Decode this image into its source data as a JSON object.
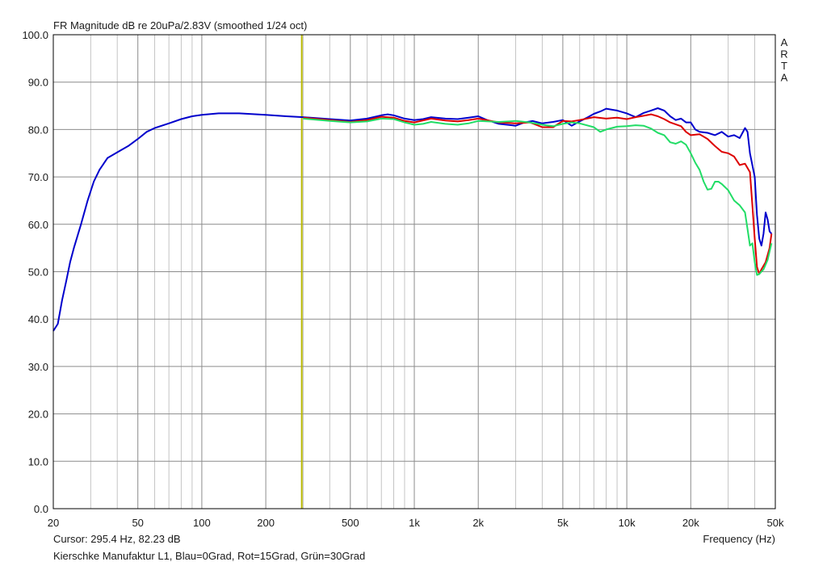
{
  "chart_data": {
    "type": "line",
    "title": "FR Magnitude dB re 20uPa/2.83V (smoothed 1/24 oct)",
    "watermark": [
      "A",
      "R",
      "T",
      "A"
    ],
    "xlabel": "Frequency (Hz)",
    "x_scale": "log",
    "xlim": [
      20,
      50000
    ],
    "ylim": [
      0,
      100
    ],
    "grid": true,
    "x_tick_labels": [
      {
        "value": 20,
        "label": "20"
      },
      {
        "value": 50,
        "label": "50"
      },
      {
        "value": 100,
        "label": "100"
      },
      {
        "value": 200,
        "label": "200"
      },
      {
        "value": 500,
        "label": "500"
      },
      {
        "value": 1000,
        "label": "1k"
      },
      {
        "value": 2000,
        "label": "2k"
      },
      {
        "value": 5000,
        "label": "5k"
      },
      {
        "value": 10000,
        "label": "10k"
      },
      {
        "value": 20000,
        "label": "20k"
      },
      {
        "value": 50000,
        "label": "50k"
      }
    ],
    "y_tick_labels": [
      "0.0",
      "10.0",
      "20.0",
      "30.0",
      "40.0",
      "50.0",
      "60.0",
      "70.0",
      "80.0",
      "90.0",
      "100.0"
    ],
    "y_ticks": [
      0,
      10,
      20,
      30,
      40,
      50,
      60,
      70,
      80,
      90,
      100
    ],
    "cursor": {
      "frequency": 295.4,
      "color": "#b8b800"
    },
    "cursor_text": "Cursor: 295.4 Hz, 82.23 dB",
    "description": "Kierschke Manufaktur L1, Blau=0Grad, Rot=15Grad, Grün=30Grad",
    "series": [
      {
        "color": "#0000cc",
        "points": [
          [
            20,
            37.5
          ],
          [
            21,
            39
          ],
          [
            22,
            44
          ],
          [
            23,
            48
          ],
          [
            24,
            52
          ],
          [
            25,
            55
          ],
          [
            27,
            60
          ],
          [
            29,
            65
          ],
          [
            31,
            69
          ],
          [
            33,
            71.5
          ],
          [
            36,
            74
          ],
          [
            40,
            75.2
          ],
          [
            45,
            76.5
          ],
          [
            50,
            78
          ],
          [
            55,
            79.5
          ],
          [
            60,
            80.3
          ],
          [
            70,
            81.3
          ],
          [
            80,
            82.2
          ],
          [
            90,
            82.8
          ],
          [
            100,
            83.1
          ],
          [
            120,
            83.4
          ],
          [
            150,
            83.4
          ],
          [
            200,
            83.1
          ],
          [
            250,
            82.8
          ],
          [
            300,
            82.6
          ],
          [
            400,
            82.2
          ],
          [
            500,
            81.9
          ],
          [
            600,
            82.3
          ],
          [
            700,
            83
          ],
          [
            750,
            83.2
          ],
          [
            800,
            83
          ],
          [
            900,
            82.3
          ],
          [
            1000,
            82
          ],
          [
            1100,
            82.2
          ],
          [
            1200,
            82.6
          ],
          [
            1400,
            82.3
          ],
          [
            1600,
            82.2
          ],
          [
            1800,
            82.5
          ],
          [
            2000,
            82.8
          ],
          [
            2200,
            82
          ],
          [
            2500,
            81.2
          ],
          [
            3000,
            80.8
          ],
          [
            3300,
            81.5
          ],
          [
            3600,
            81.8
          ],
          [
            4000,
            81.3
          ],
          [
            4500,
            81.6
          ],
          [
            5000,
            82
          ],
          [
            5500,
            80.8
          ],
          [
            6000,
            81.7
          ],
          [
            6500,
            82.5
          ],
          [
            7000,
            83.3
          ],
          [
            7500,
            83.8
          ],
          [
            8000,
            84.4
          ],
          [
            9000,
            84
          ],
          [
            10000,
            83.4
          ],
          [
            11000,
            82.6
          ],
          [
            12000,
            83.5
          ],
          [
            13000,
            84
          ],
          [
            14000,
            84.5
          ],
          [
            15000,
            84
          ],
          [
            16000,
            82.8
          ],
          [
            17000,
            82
          ],
          [
            18000,
            82.3
          ],
          [
            19000,
            81.5
          ],
          [
            20000,
            81.5
          ],
          [
            21000,
            80
          ],
          [
            22000,
            79.5
          ],
          [
            24000,
            79.3
          ],
          [
            26000,
            78.8
          ],
          [
            28000,
            79.5
          ],
          [
            30000,
            78.5
          ],
          [
            32000,
            78.8
          ],
          [
            34000,
            78.2
          ],
          [
            36000,
            80.3
          ],
          [
            37000,
            79.5
          ],
          [
            38000,
            75
          ],
          [
            40000,
            70
          ],
          [
            41000,
            62
          ],
          [
            42000,
            57
          ],
          [
            43000,
            55.5
          ],
          [
            44000,
            58
          ],
          [
            45000,
            62.5
          ],
          [
            46000,
            61
          ],
          [
            47000,
            58.5
          ],
          [
            48000,
            58
          ]
        ]
      },
      {
        "color": "#dd0000",
        "points": [
          [
            300,
            82.5
          ],
          [
            400,
            82
          ],
          [
            500,
            81.6
          ],
          [
            600,
            82
          ],
          [
            700,
            82.7
          ],
          [
            800,
            82.5
          ],
          [
            900,
            81.8
          ],
          [
            1000,
            81.5
          ],
          [
            1200,
            82.3
          ],
          [
            1400,
            81.9
          ],
          [
            1600,
            81.7
          ],
          [
            1800,
            82
          ],
          [
            2000,
            82.3
          ],
          [
            2500,
            81.5
          ],
          [
            3000,
            81.3
          ],
          [
            3500,
            81.5
          ],
          [
            4000,
            80.5
          ],
          [
            4500,
            80.5
          ],
          [
            5000,
            81.8
          ],
          [
            5500,
            81.7
          ],
          [
            6000,
            82
          ],
          [
            7000,
            82.6
          ],
          [
            8000,
            82.3
          ],
          [
            9000,
            82.5
          ],
          [
            10000,
            82.2
          ],
          [
            11000,
            82.6
          ],
          [
            12000,
            82.9
          ],
          [
            13000,
            83.2
          ],
          [
            14000,
            82.8
          ],
          [
            15000,
            82.2
          ],
          [
            16000,
            81.5
          ],
          [
            18000,
            80.7
          ],
          [
            19000,
            79.5
          ],
          [
            20000,
            78.8
          ],
          [
            22000,
            79
          ],
          [
            24000,
            78
          ],
          [
            26000,
            76.5
          ],
          [
            28000,
            75.3
          ],
          [
            30000,
            75
          ],
          [
            32000,
            74.3
          ],
          [
            34000,
            72.5
          ],
          [
            36000,
            72.8
          ],
          [
            38000,
            71
          ],
          [
            39000,
            64
          ],
          [
            40000,
            57
          ],
          [
            41000,
            51
          ],
          [
            42000,
            49.5
          ],
          [
            43000,
            50.5
          ],
          [
            45000,
            52
          ],
          [
            47000,
            55
          ],
          [
            48000,
            58
          ]
        ]
      },
      {
        "color": "#22dd66",
        "points": [
          [
            300,
            82.3
          ],
          [
            400,
            81.8
          ],
          [
            500,
            81.5
          ],
          [
            600,
            81.7
          ],
          [
            700,
            82.3
          ],
          [
            800,
            82.2
          ],
          [
            900,
            81.5
          ],
          [
            1000,
            81
          ],
          [
            1100,
            81.2
          ],
          [
            1200,
            81.6
          ],
          [
            1400,
            81.2
          ],
          [
            1600,
            81
          ],
          [
            1800,
            81.3
          ],
          [
            2000,
            81.8
          ],
          [
            2500,
            81.6
          ],
          [
            3000,
            81.8
          ],
          [
            3500,
            81.5
          ],
          [
            4000,
            81
          ],
          [
            4500,
            80.7
          ],
          [
            5000,
            81.2
          ],
          [
            5500,
            81.5
          ],
          [
            6000,
            81.3
          ],
          [
            7000,
            80.5
          ],
          [
            7500,
            79.5
          ],
          [
            8000,
            80
          ],
          [
            9000,
            80.6
          ],
          [
            10000,
            80.7
          ],
          [
            11000,
            80.9
          ],
          [
            12000,
            80.8
          ],
          [
            13000,
            80.2
          ],
          [
            14000,
            79.3
          ],
          [
            15000,
            78.8
          ],
          [
            16000,
            77.3
          ],
          [
            17000,
            77
          ],
          [
            18000,
            77.5
          ],
          [
            19000,
            76.8
          ],
          [
            20000,
            75
          ],
          [
            21000,
            73
          ],
          [
            22000,
            71.5
          ],
          [
            23000,
            69
          ],
          [
            24000,
            67.3
          ],
          [
            25000,
            67.5
          ],
          [
            26000,
            69
          ],
          [
            27000,
            69
          ],
          [
            28000,
            68.5
          ],
          [
            30000,
            67.2
          ],
          [
            32000,
            65
          ],
          [
            34000,
            64
          ],
          [
            36000,
            62.5
          ],
          [
            37000,
            59
          ],
          [
            38000,
            55.5
          ],
          [
            39000,
            56
          ],
          [
            40000,
            52
          ],
          [
            41000,
            49.3
          ],
          [
            42000,
            49.5
          ],
          [
            44000,
            50.5
          ],
          [
            46000,
            52.5
          ],
          [
            48000,
            56
          ]
        ]
      }
    ]
  }
}
